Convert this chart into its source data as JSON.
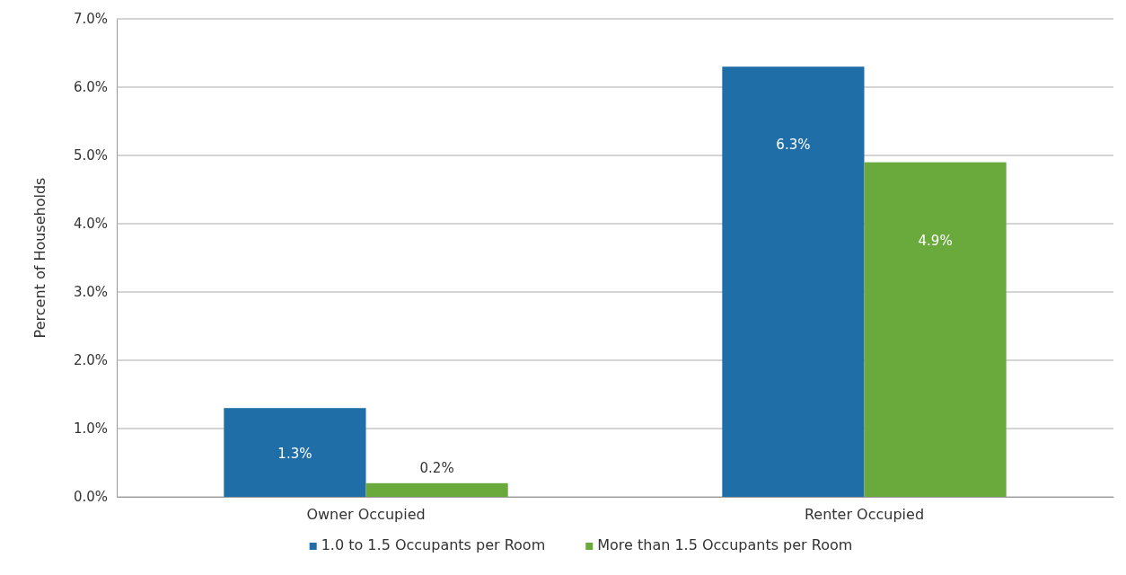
{
  "chart_data": {
    "type": "bar",
    "ylabel": "Percent of Households",
    "categories": [
      "Owner Occupied",
      "Renter Occupied"
    ],
    "series": [
      {
        "name": "1.0 to 1.5 Occupants per Room",
        "color": "#1f6ea8",
        "values": [
          1.3,
          6.3
        ],
        "value_labels": [
          "1.3%",
          "6.3%"
        ]
      },
      {
        "name": "More than 1.5 Occupants per Room",
        "color": "#6aaa3c",
        "values": [
          0.2,
          4.9
        ],
        "value_labels": [
          "0.2%",
          "4.9%"
        ]
      }
    ],
    "ylim": [
      0,
      7
    ],
    "yticks": [
      {
        "value": 0,
        "label": "0.0%"
      },
      {
        "value": 1,
        "label": "1.0%"
      },
      {
        "value": 2,
        "label": "2.0%"
      },
      {
        "value": 3,
        "label": "3.0%"
      },
      {
        "value": 4,
        "label": "4.0%"
      },
      {
        "value": 5,
        "label": "5.0%"
      },
      {
        "value": 6,
        "label": "6.0%"
      },
      {
        "value": 7,
        "label": "7.0%"
      }
    ],
    "grid": "y",
    "legend": "bottom"
  }
}
